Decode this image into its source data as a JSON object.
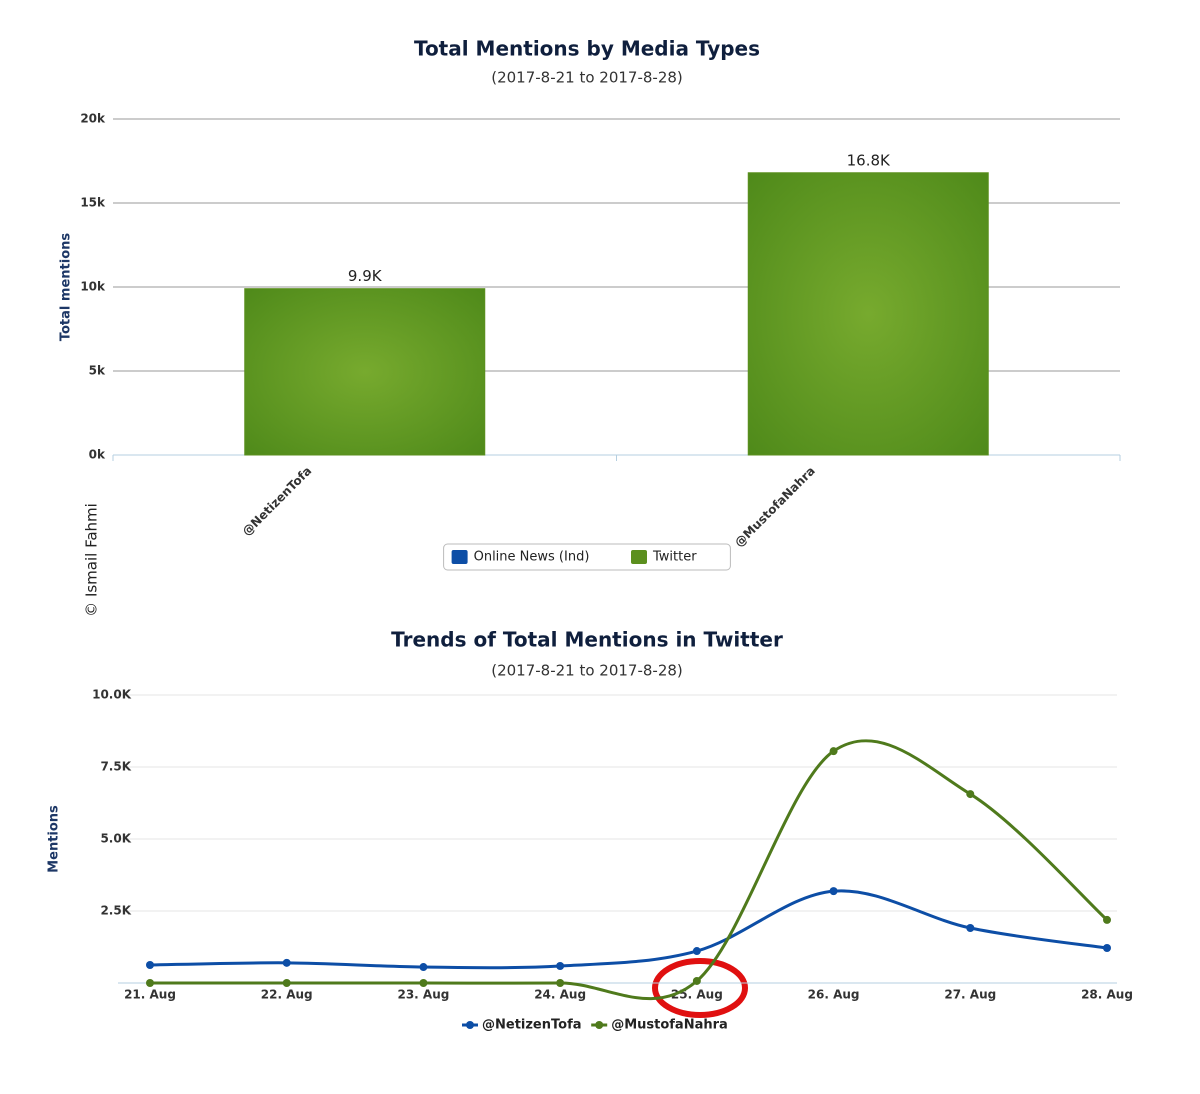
{
  "watermark": "© Ismail Fahmi",
  "chart_data": [
    {
      "type": "bar",
      "title": "Total Mentions by Media Types",
      "subtitle": "(2017-8-21 to 2017-8-28)",
      "y_label": "Total mentions",
      "categories": [
        "@NetizenTofa",
        "@MustofaNahra"
      ],
      "series": [
        {
          "name": "Online News (Ind)",
          "color": "#0d4ea6",
          "values": [
            null,
            null
          ]
        },
        {
          "name": "Twitter",
          "color": "#5b8f1e",
          "values": [
            9900,
            16800
          ],
          "value_labels": [
            "9.9K",
            "16.8K"
          ]
        }
      ],
      "ylim": [
        0,
        20000
      ],
      "yticks": [
        {
          "value": 0,
          "label": "0k"
        },
        {
          "value": 5000,
          "label": "5k"
        },
        {
          "value": 10000,
          "label": "10k"
        },
        {
          "value": 15000,
          "label": "15k"
        },
        {
          "value": 20000,
          "label": "20k"
        }
      ],
      "grid": true
    },
    {
      "type": "line",
      "title": "Trends of Total Mentions in Twitter",
      "subtitle": "(2017-8-21 to 2017-8-28)",
      "y_label": "Mentions",
      "categories": [
        "21. Aug",
        "22. Aug",
        "23. Aug",
        "24. Aug",
        "25. Aug",
        "26. Aug",
        "27. Aug",
        "28. Aug"
      ],
      "series": [
        {
          "name": "@NetizenTofa",
          "color": "#0d4ea6",
          "values": [
            625,
            700,
            555,
            590,
            1110,
            3190,
            1910,
            1215
          ]
        },
        {
          "name": "@MustofaNahra",
          "color": "#4f7a1c",
          "values": [
            0,
            0,
            0,
            0,
            70,
            8050,
            6560,
            2190
          ]
        }
      ],
      "ylim": [
        0,
        10000
      ],
      "yticks": [
        {
          "value": 2500,
          "label": "2.5K"
        },
        {
          "value": 5000,
          "label": "5.0K"
        },
        {
          "value": 7500,
          "label": "7.5K"
        },
        {
          "value": 10000,
          "label": "10.0K"
        }
      ],
      "grid": true
    }
  ]
}
